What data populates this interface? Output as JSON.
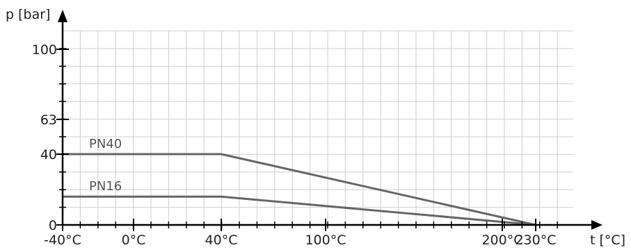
{
  "chart_data": {
    "type": "line",
    "xlabel": "t [°C]",
    "ylabel": "p [bar]",
    "x_ticks": [
      {
        "value": -40,
        "label": "-40°C"
      },
      {
        "value": 0,
        "label": "0°C"
      },
      {
        "value": 40,
        "label": "40°C"
      },
      {
        "value": 100,
        "label": "100°C"
      },
      {
        "value": 200,
        "label": "200°C"
      },
      {
        "value": 230,
        "label": "230°C"
      }
    ],
    "y_ticks": [
      {
        "value": 0,
        "label": "0"
      },
      {
        "value": 40,
        "label": "40"
      },
      {
        "value": 63,
        "label": "63"
      },
      {
        "value": 100,
        "label": "100"
      }
    ],
    "xlim": [
      -40,
      230
    ],
    "ylim": [
      0,
      100
    ],
    "grid": true,
    "series": [
      {
        "name": "PN40",
        "x": [
          -40,
          40,
          230
        ],
        "y": [
          40,
          40,
          0
        ],
        "color": "#666666"
      },
      {
        "name": "PN16",
        "x": [
          -40,
          40,
          230
        ],
        "y": [
          16,
          16,
          0
        ],
        "color": "#666666"
      }
    ]
  }
}
